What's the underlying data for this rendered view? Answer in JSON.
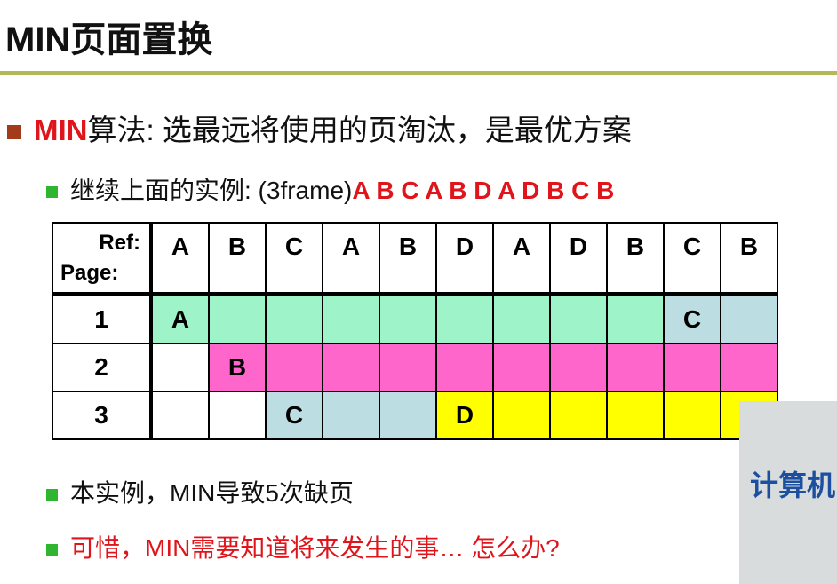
{
  "header": {
    "title": "MIN页面置换"
  },
  "bullets": [
    {
      "parts": [
        "MIN",
        "算法: 选最远将使用的页淘汰，是最优方案"
      ]
    },
    {
      "parts": [
        "继续上面的实例: (3frame)",
        "A B C A B D A D B C B"
      ]
    },
    {
      "parts": [
        "本实例，MIN导致5次缺页"
      ]
    },
    {
      "parts": [
        "可惜，MIN需要知道将来发生的事… 怎么办?"
      ]
    }
  ],
  "table": {
    "ref_label": "Ref:",
    "page_label": "Page:",
    "refs": [
      "A",
      "B",
      "C",
      "A",
      "B",
      "D",
      "A",
      "D",
      "B",
      "C",
      "B"
    ],
    "rows": [
      {
        "label": "1",
        "cells": [
          "A",
          null,
          null,
          null,
          null,
          null,
          null,
          null,
          null,
          "C",
          null
        ],
        "fills": [
          "#9ef3c9",
          "#9ef3c9",
          "#9ef3c9",
          "#9ef3c9",
          "#9ef3c9",
          "#9ef3c9",
          "#9ef3c9",
          "#9ef3c9",
          "#9ef3c9",
          "#bcdde1",
          "#bcdde1"
        ]
      },
      {
        "label": "2",
        "cells": [
          null,
          "B",
          null,
          null,
          null,
          null,
          null,
          null,
          null,
          null,
          null
        ],
        "fills": [
          "#ffffff",
          "#ff66cc",
          "#ff66cc",
          "#ff66cc",
          "#ff66cc",
          "#ff66cc",
          "#ff66cc",
          "#ff66cc",
          "#ff66cc",
          "#ff66cc",
          "#ff66cc"
        ]
      },
      {
        "label": "3",
        "cells": [
          null,
          null,
          "C",
          null,
          null,
          "D",
          null,
          null,
          null,
          null,
          null
        ],
        "fills": [
          "#ffffff",
          "#ffffff",
          "#bcdde1",
          "#bcdde1",
          "#bcdde1",
          "#ffff00",
          "#ffff00",
          "#ffff00",
          "#ffff00",
          "#ffff00",
          "#ffff00"
        ]
      }
    ]
  },
  "overlay": {
    "text": "计算机"
  }
}
